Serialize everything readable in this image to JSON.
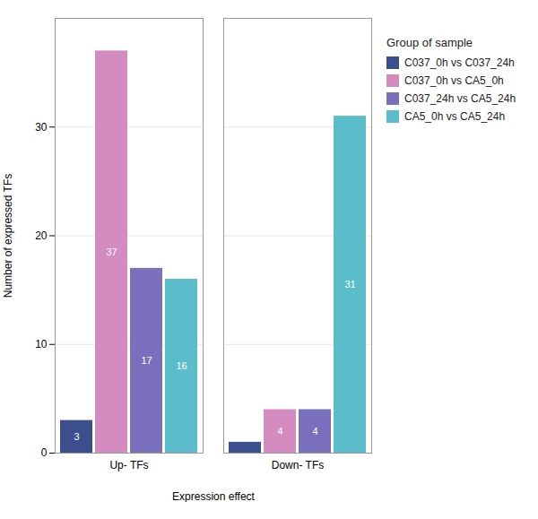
{
  "chart_data": {
    "type": "bar",
    "categories": [
      "Up- TFs",
      "Down- TFs"
    ],
    "series": [
      {
        "name": "C037_0h vs C037_24h",
        "color": "#3B4F8E",
        "values": [
          3,
          1
        ],
        "value_labels": [
          "3",
          null
        ]
      },
      {
        "name": "C037_0h vs CA5_0h",
        "color": "#D48BBF",
        "values": [
          37,
          4
        ],
        "value_labels": [
          "37",
          "4"
        ]
      },
      {
        "name": "C037_24h vs CA5_24h",
        "color": "#7A6FBD",
        "values": [
          17,
          4
        ],
        "value_labels": [
          "17",
          "4"
        ]
      },
      {
        "name": "CA5_0h vs CA5_24h",
        "color": "#5BBCCA",
        "values": [
          16,
          31
        ],
        "value_labels": [
          "16",
          "31"
        ]
      }
    ],
    "xlabel": "Expression effect",
    "ylabel": "Number of expressed TFs",
    "legend_title": "Group of sample",
    "ylim": [
      0,
      40
    ],
    "yticks": [
      0,
      10,
      20,
      30
    ],
    "grid": true,
    "legend": "right",
    "data_labels": true
  }
}
